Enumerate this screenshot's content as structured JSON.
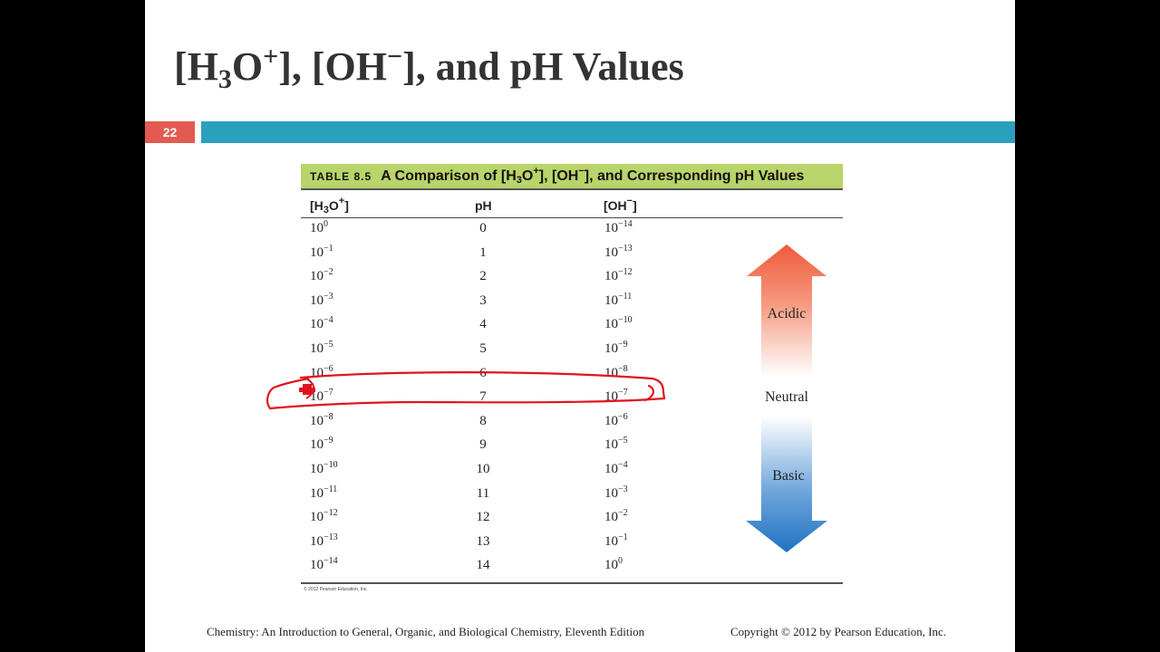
{
  "slide": {
    "title_parts": [
      "[H",
      "3",
      "O",
      "+",
      "], [OH",
      "−",
      "], and pH Values"
    ],
    "number": "22"
  },
  "table": {
    "label": "TABLE 8.5",
    "caption_parts": [
      "A Comparison of [H",
      "3",
      "O",
      "+",
      "], [OH",
      "−",
      "], and Corresponding pH Values"
    ],
    "col_h3o_parts": [
      "[H",
      "3",
      "O",
      "+",
      "]"
    ],
    "col_ph": "pH",
    "col_oh_parts": [
      "[OH",
      "−",
      "]"
    ],
    "rows": [
      {
        "h3o_base": "10",
        "h3o_exp": "0",
        "ph": "0",
        "oh_base": "10",
        "oh_exp": "−14"
      },
      {
        "h3o_base": "10",
        "h3o_exp": "−1",
        "ph": "1",
        "oh_base": "10",
        "oh_exp": "−13"
      },
      {
        "h3o_base": "10",
        "h3o_exp": "−2",
        "ph": "2",
        "oh_base": "10",
        "oh_exp": "−12"
      },
      {
        "h3o_base": "10",
        "h3o_exp": "−3",
        "ph": "3",
        "oh_base": "10",
        "oh_exp": "−11"
      },
      {
        "h3o_base": "10",
        "h3o_exp": "−4",
        "ph": "4",
        "oh_base": "10",
        "oh_exp": "−10"
      },
      {
        "h3o_base": "10",
        "h3o_exp": "−5",
        "ph": "5",
        "oh_base": "10",
        "oh_exp": "−9"
      },
      {
        "h3o_base": "10",
        "h3o_exp": "−6",
        "ph": "6",
        "oh_base": "10",
        "oh_exp": "−8"
      },
      {
        "h3o_base": "10",
        "h3o_exp": "−7",
        "ph": "7",
        "oh_base": "10",
        "oh_exp": "−7"
      },
      {
        "h3o_base": "10",
        "h3o_exp": "−8",
        "ph": "8",
        "oh_base": "10",
        "oh_exp": "−6"
      },
      {
        "h3o_base": "10",
        "h3o_exp": "−9",
        "ph": "9",
        "oh_base": "10",
        "oh_exp": "−5"
      },
      {
        "h3o_base": "10",
        "h3o_exp": "−10",
        "ph": "10",
        "oh_base": "10",
        "oh_exp": "−4"
      },
      {
        "h3o_base": "10",
        "h3o_exp": "−11",
        "ph": "11",
        "oh_base": "10",
        "oh_exp": "−3"
      },
      {
        "h3o_base": "10",
        "h3o_exp": "−12",
        "ph": "12",
        "oh_base": "10",
        "oh_exp": "−2"
      },
      {
        "h3o_base": "10",
        "h3o_exp": "−13",
        "ph": "13",
        "oh_base": "10",
        "oh_exp": "−1"
      },
      {
        "h3o_base": "10",
        "h3o_exp": "−14",
        "ph": "14",
        "oh_base": "10",
        "oh_exp": "0"
      }
    ],
    "credit": "© 2012 Pearson Education, Inc."
  },
  "scale": {
    "acidic": "Acidic",
    "neutral": "Neutral",
    "basic": "Basic"
  },
  "footer": {
    "left": "Chemistry:  An Introduction  to General,  Organic,  and Biological  Chemistry,  Eleventh Edition",
    "right": "Copyright  © 2012 by Pearson Education,  Inc."
  },
  "colors": {
    "slide_number_bg": "#e35a50",
    "teal_bar": "#2aa0bd",
    "table_header_bg": "#b9d46a",
    "annotation_red": "#e0141e",
    "acidic_arrow": "#ef5a3a",
    "basic_arrow": "#1f73c2"
  }
}
